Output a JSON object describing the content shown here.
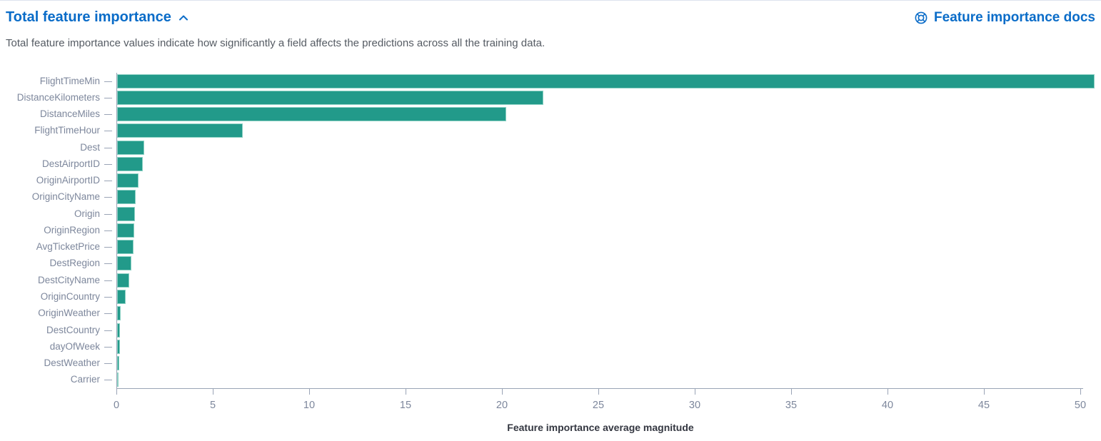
{
  "header": {
    "title": "Total feature importance",
    "collapse_icon": "chevron-up-icon",
    "docs_link_label": "Feature importance docs",
    "docs_link_icon": "life-ring-icon"
  },
  "description": "Total feature importance values indicate how significantly a field affects the predictions across all the training data.",
  "colors": {
    "bar_fill": "#229a8a",
    "bar_edge": "#8ed2c5",
    "link_blue": "#0a6cc8",
    "axis_line": "#9aa4b6",
    "tick_label": "#7d879c",
    "subtitle_text": "#555b63",
    "axis_title_text": "#343741",
    "background": "#ffffff"
  },
  "chart_data": {
    "type": "bar",
    "orientation": "horizontal",
    "title": "Total feature importance",
    "xlabel": "Feature importance average magnitude",
    "ylabel": "",
    "categories": [
      "FlightTimeMin",
      "DistanceKilometers",
      "DistanceMiles",
      "FlightTimeHour",
      "Dest",
      "DestAirportID",
      "OriginAirportID",
      "OriginCityName",
      "Origin",
      "OriginRegion",
      "AvgTicketPrice",
      "DestRegion",
      "DestCityName",
      "OriginCountry",
      "OriginWeather",
      "DestCountry",
      "dayOfWeek",
      "DestWeather",
      "Carrier"
    ],
    "values": [
      50.7,
      22.1,
      20.2,
      6.5,
      1.4,
      1.33,
      1.1,
      0.98,
      0.93,
      0.9,
      0.84,
      0.73,
      0.62,
      0.44,
      0.2,
      0.16,
      0.15,
      0.11,
      0.05
    ],
    "x_ticks": [
      0,
      5,
      10,
      15,
      20,
      25,
      30,
      35,
      40,
      45,
      50
    ],
    "xlim": [
      0,
      50.8
    ],
    "grid": false,
    "legend": "none"
  }
}
